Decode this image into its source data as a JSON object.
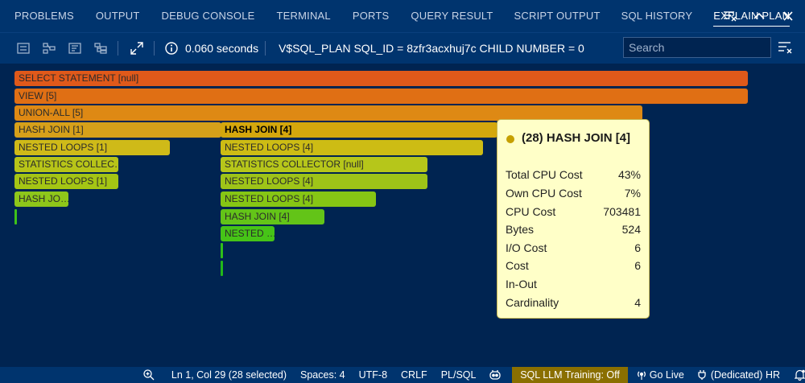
{
  "tabs": [
    {
      "label": "PROBLEMS"
    },
    {
      "label": "OUTPUT"
    },
    {
      "label": "DEBUG CONSOLE"
    },
    {
      "label": "TERMINAL"
    },
    {
      "label": "PORTS"
    },
    {
      "label": "QUERY RESULT"
    },
    {
      "label": "SCRIPT OUTPUT"
    },
    {
      "label": "SQL HISTORY"
    },
    {
      "label": "EXPLAIN PLAN"
    }
  ],
  "tab_more": "···",
  "toolbar": {
    "elapsed": "0.060 seconds",
    "plan_title": "V$SQL_PLAN SQL_ID = 8zfr3acxhuj7c CHILD NUMBER = 0",
    "search_placeholder": "Search"
  },
  "plan_nodes": {
    "select_statement": "SELECT STATEMENT [null]",
    "view": "VIEW [5]",
    "union_all": "UNION-ALL [5]",
    "hash_join_1": "HASH JOIN [1]",
    "hash_join_4_selected": "HASH JOIN [4]",
    "nested_loops_1a": "NESTED LOOPS [1]",
    "nested_loops_4a": "NESTED LOOPS [4]",
    "statistics_collector_trunc": "STATISTICS COLLEC…",
    "statistics_collector_null": "STATISTICS COLLECTOR [null]",
    "nested_loops_1b": "NESTED LOOPS [1]",
    "nested_loops_4b": "NESTED LOOPS [4]",
    "hash_jo_trunc": "HASH JO…",
    "nested_loops_4c": "NESTED LOOPS [4]",
    "hash_join_4b": "HASH JOIN [4]",
    "nested_trunc": "NESTED …"
  },
  "tooltip": {
    "title": "(28) HASH JOIN [4]",
    "rows": [
      {
        "label": "Total CPU Cost",
        "value": "43%"
      },
      {
        "label": "Own CPU Cost",
        "value": "7%"
      },
      {
        "label": "CPU Cost",
        "value": "703481"
      },
      {
        "label": "Bytes",
        "value": "524"
      },
      {
        "label": "I/O Cost",
        "value": "6"
      },
      {
        "label": "Cost",
        "value": "6"
      },
      {
        "label": "In-Out",
        "value": ""
      },
      {
        "label": "Cardinality",
        "value": "4"
      }
    ]
  },
  "statusbar": {
    "cursor": "Ln 1, Col 29 (28 selected)",
    "spaces": "Spaces: 4",
    "encoding": "UTF-8",
    "eol": "CRLF",
    "language": "PL/SQL",
    "sql_llm": "SQL LLM Training: Off",
    "go_live": "Go Live",
    "connection": "(Dedicated) HR"
  },
  "colors": {
    "background": "#002451",
    "panel": "#00346e",
    "tooltip_bg": "#ffffc8",
    "highlight": "#8a6f00"
  }
}
